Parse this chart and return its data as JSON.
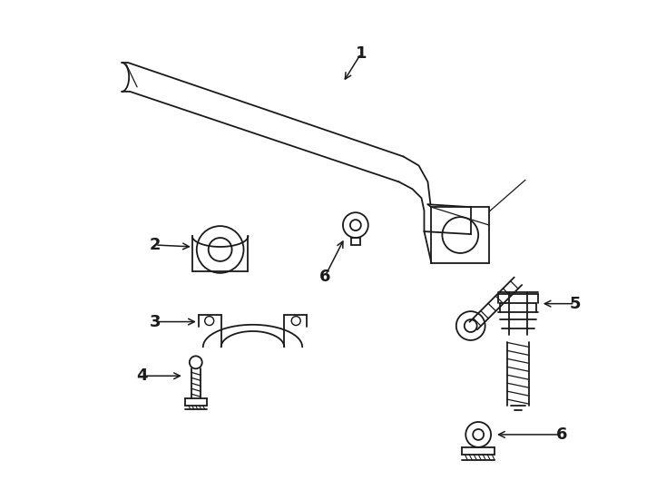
{
  "bg_color": "#ffffff",
  "line_color": "#1a1a1a",
  "lw": 1.3,
  "figsize": [
    7.34,
    5.4
  ],
  "dpi": 100
}
